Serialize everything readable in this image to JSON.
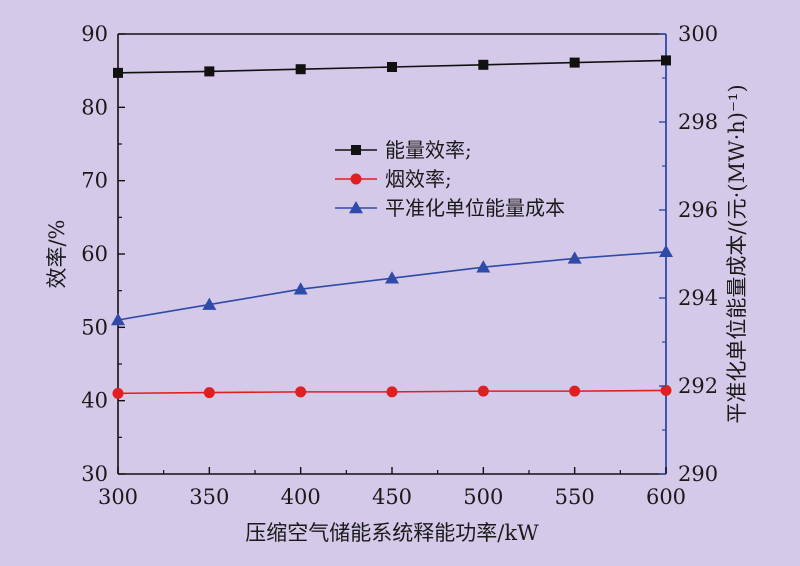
{
  "chart_data": {
    "type": "line",
    "x": [
      300,
      350,
      400,
      450,
      500,
      550,
      600
    ],
    "xlabel": "压缩空气储能系统释能功率/kW",
    "xlim": [
      300,
      600
    ],
    "xticks": [
      "300",
      "350",
      "400",
      "450",
      "500",
      "550",
      "600"
    ],
    "ylabel": "效率/%",
    "ylim": [
      30,
      90
    ],
    "yticks": [
      "30",
      "40",
      "50",
      "60",
      "70",
      "80",
      "90"
    ],
    "y2label": "平准化单位能量成本/(元·(MW·h)⁻¹)",
    "y2lim": [
      290,
      300
    ],
    "y2ticks": [
      "290",
      "292",
      "294",
      "296",
      "298",
      "300"
    ],
    "legend_position": "center",
    "grid": false,
    "series": [
      {
        "name": "能量效率;",
        "axis": "left",
        "marker": "square",
        "color": "#111111",
        "values": [
          84.7,
          84.9,
          85.2,
          85.5,
          85.8,
          86.1,
          86.4
        ]
      },
      {
        "name": "烟效率;",
        "axis": "left",
        "marker": "circle",
        "color": "#e02020",
        "values": [
          41.0,
          41.1,
          41.2,
          41.2,
          41.3,
          41.3,
          41.4
        ]
      },
      {
        "name": "平准化单位能量成本",
        "axis": "right",
        "marker": "triangle",
        "color": "#2f4aa8",
        "values": [
          293.5,
          293.85,
          294.2,
          294.45,
          294.7,
          294.9,
          295.05
        ]
      }
    ]
  }
}
